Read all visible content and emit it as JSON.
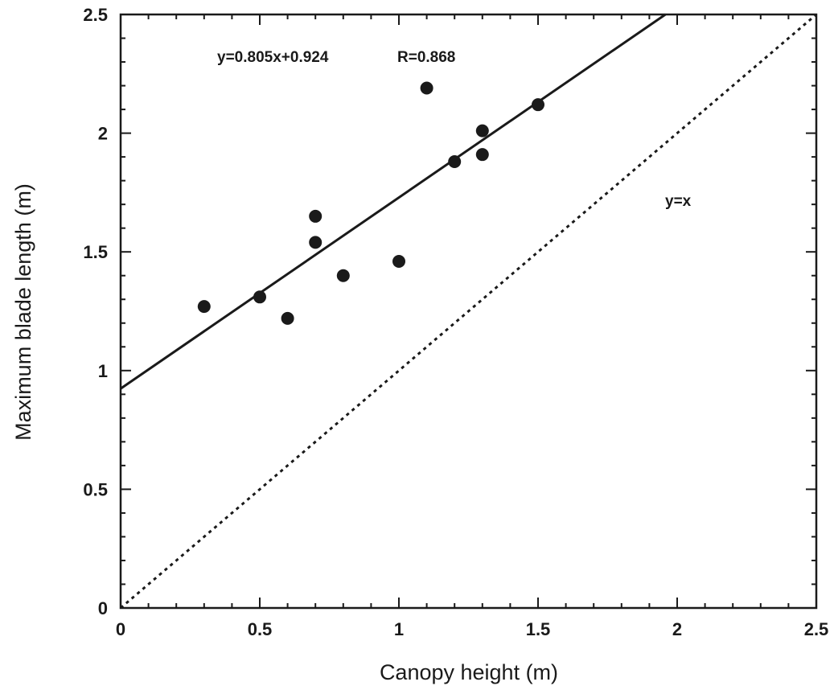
{
  "chart_data": {
    "type": "scatter",
    "xlabel": "Canopy height (m)",
    "ylabel": "Maximum blade length (m)",
    "xlim": [
      0,
      2.5
    ],
    "ylim": [
      0,
      2.5
    ],
    "xticks": [
      "0",
      "0.5",
      "1",
      "1.5",
      "2",
      "2.5"
    ],
    "yticks": [
      "0",
      "0.5",
      "1",
      "1.5",
      "2",
      "2.5"
    ],
    "grid": false,
    "points": [
      {
        "x": 0.3,
        "y": 1.27
      },
      {
        "x": 0.5,
        "y": 1.31
      },
      {
        "x": 0.6,
        "y": 1.22
      },
      {
        "x": 0.7,
        "y": 1.65
      },
      {
        "x": 0.7,
        "y": 1.54
      },
      {
        "x": 0.8,
        "y": 1.4
      },
      {
        "x": 1.0,
        "y": 1.46
      },
      {
        "x": 1.1,
        "y": 2.19
      },
      {
        "x": 1.2,
        "y": 1.88
      },
      {
        "x": 1.3,
        "y": 2.01
      },
      {
        "x": 1.3,
        "y": 1.91
      },
      {
        "x": 1.5,
        "y": 2.12
      }
    ],
    "fit_line": {
      "slope": 0.805,
      "intercept": 0.924,
      "style": "solid"
    },
    "reference_line": {
      "slope": 1,
      "intercept": 0,
      "style": "dotted"
    },
    "annotations": {
      "equation": "y=0.805x+0.924",
      "r_value": "R=0.868",
      "reference": "y=x"
    },
    "colors": {
      "ink": "#1a1a1a",
      "background": "#ffffff"
    }
  }
}
